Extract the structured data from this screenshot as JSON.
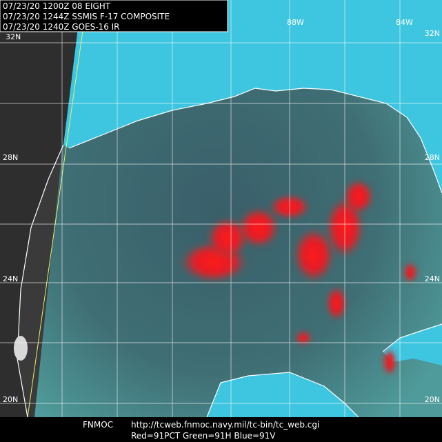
{
  "header": {
    "lines": [
      "07/23/20 1200Z  08 EIGHT",
      "07/23/20 1244Z  SSMIS F-17 COMPOSITE",
      "07/23/20 1240Z  GOES-16 IR"
    ]
  },
  "grid_labels": {
    "top": [
      "88W",
      "84W"
    ],
    "left": [
      "32N",
      "28N",
      "24N",
      "20N"
    ],
    "right": [
      "32N",
      "28N",
      "24N",
      "20N"
    ]
  },
  "footer": {
    "source": "FNMOC",
    "url": "http://tcweb.fnmoc.navy.mil/tc-bin/tc_web.cgi",
    "channels": "Red=91PCT  Green=91H  Blue=91V"
  }
}
